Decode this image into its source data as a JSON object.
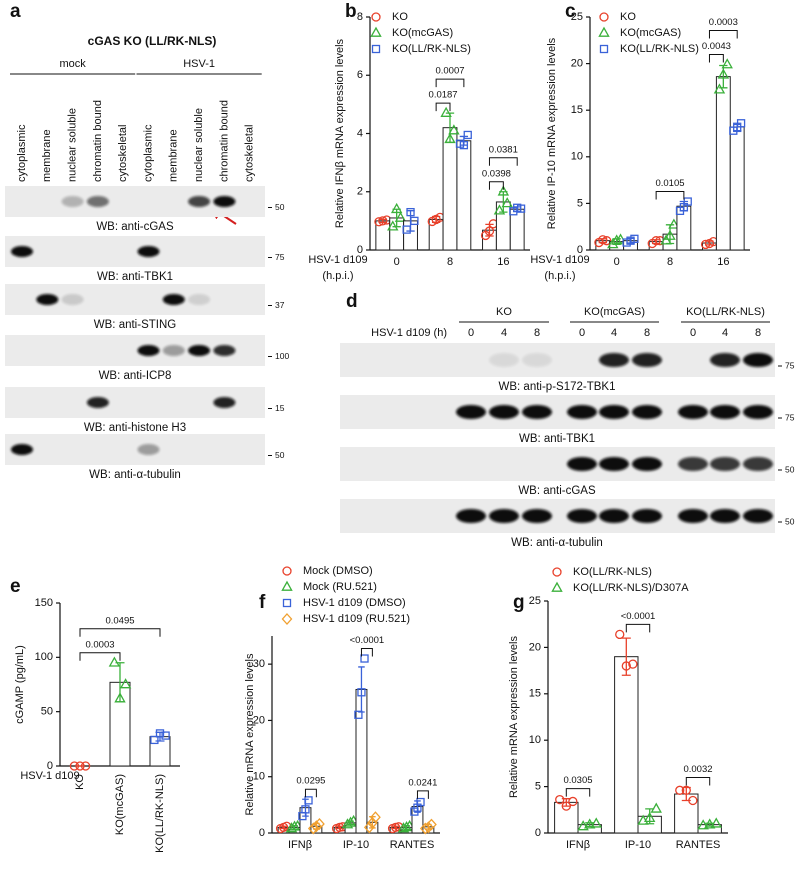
{
  "blot_panels": [
    {
      "panel_label": "a",
      "title": "cGAS KO (LL/RK-NLS)",
      "groups": [
        "mock",
        "HSV-1"
      ],
      "lanes": [
        "cytoplasmic",
        "membrane",
        "nuclear soluble",
        "chromatin bound",
        "cytoskeletal",
        "cytoplasmic",
        "membrane",
        "nuclear soluble",
        "chromatin bound",
        "cytoskeletal"
      ],
      "blots": [
        {
          "label": "WB: anti-cGAS",
          "marker": "50"
        },
        {
          "label": "WB: anti-TBK1",
          "marker": "75"
        },
        {
          "label": "WB: anti-STING",
          "marker": "37"
        },
        {
          "label": "WB: anti-ICP8",
          "marker": "100"
        },
        {
          "label": "WB: anti-histone H3",
          "marker": "15"
        },
        {
          "label": "WB: anti-α-tubulin",
          "marker": "50"
        }
      ]
    },
    {
      "panel_label": "d",
      "condition_label": "HSV-1 d109 (h)",
      "groups": [
        "KO",
        "KO(mcGAS)",
        "KO(LL/RK-NLS)"
      ],
      "lanes": [
        "0",
        "4",
        "8",
        "0",
        "4",
        "8",
        "0",
        "4",
        "8"
      ],
      "blots": [
        {
          "label": "WB: anti-p-S172-TBK1",
          "marker": "75"
        },
        {
          "label": "WB: anti-TBK1",
          "marker": "75"
        },
        {
          "label": "WB: anti-cGAS",
          "marker": "50"
        },
        {
          "label": "WB: anti-α-tubulin",
          "marker": "50"
        }
      ]
    }
  ],
  "chart_data": [
    {
      "panel_label": "b",
      "type": "bar",
      "y_label": "Relative IFNβ mRNA expression levels",
      "x_label": [
        "HSV-1 d109",
        "(h.p.i.)"
      ],
      "categories": [
        "0",
        "8",
        "16"
      ],
      "ylim": [
        0,
        8
      ],
      "yticks": [
        0,
        2,
        4,
        6,
        8
      ],
      "legend": "upper left",
      "series": [
        {
          "name": "KO",
          "color": "#e8402a",
          "marker": "circle",
          "values": [
            1.0,
            1.05,
            0.68
          ],
          "errors": [
            0.05,
            0.1,
            0.2
          ],
          "points": [
            [
              0.97,
              1.0,
              1.03
            ],
            [
              0.98,
              1.05,
              1.12
            ],
            [
              0.5,
              0.65,
              0.9
            ]
          ]
        },
        {
          "name": "KO(mcGAS)",
          "color": "#3bb03b",
          "marker": "triangle",
          "values": [
            1.1,
            4.2,
            1.65
          ],
          "errors": [
            0.3,
            0.5,
            0.35
          ],
          "points": [
            [
              0.8,
              1.4,
              1.1
            ],
            [
              4.7,
              3.8,
              4.1
            ],
            [
              1.35,
              2.0,
              1.6
            ]
          ]
        },
        {
          "name": "KO(LL/RK-NLS)",
          "color": "#3a62d8",
          "marker": "square",
          "values": [
            1.0,
            3.75,
            1.4
          ],
          "errors": [
            0.35,
            0.15,
            0.08
          ],
          "points": [
            [
              0.7,
              1.3,
              1.0
            ],
            [
              3.65,
              3.6,
              3.95
            ],
            [
              1.33,
              1.45,
              1.42
            ]
          ]
        }
      ],
      "brackets": [
        {
          "category": 1,
          "from": 0,
          "to": 1,
          "label": "0.0187"
        },
        {
          "category": 1,
          "from": 0,
          "to": 2,
          "label": "0.0007"
        },
        {
          "category": 2,
          "from": 0,
          "to": 1,
          "label": "0.0398"
        },
        {
          "category": 2,
          "from": 0,
          "to": 2,
          "label": "0.0381"
        }
      ]
    },
    {
      "panel_label": "c",
      "type": "bar",
      "y_label": "Relative IP-10 mRNA expression levels",
      "x_label": [
        "HSV-1 d109",
        "(h.p.i.)"
      ],
      "categories": [
        "0",
        "8",
        "16"
      ],
      "ylim": [
        0,
        25
      ],
      "yticks": [
        0,
        5,
        10,
        15,
        20,
        25
      ],
      "legend": "upper left",
      "series": [
        {
          "name": "KO",
          "color": "#e8402a",
          "marker": "circle",
          "values": [
            1.0,
            0.9,
            0.75
          ],
          "errors": [
            0.2,
            0.2,
            0.2
          ],
          "points": [
            [
              0.8,
              1.1,
              1.0
            ],
            [
              0.7,
              1.0,
              1.0
            ],
            [
              0.6,
              0.7,
              0.9
            ]
          ]
        },
        {
          "name": "KO(mcGAS)",
          "color": "#3bb03b",
          "marker": "triangle",
          "values": [
            0.9,
            1.7,
            18.6
          ],
          "errors": [
            0.3,
            1.0,
            1.2
          ],
          "points": [
            [
              0.6,
              1.0,
              1.1
            ],
            [
              1.0,
              1.5,
              2.7
            ],
            [
              17.2,
              18.8,
              19.9
            ]
          ]
        },
        {
          "name": "KO(LL/RK-NLS)",
          "color": "#3a62d8",
          "marker": "square",
          "values": [
            1.0,
            4.7,
            13.2
          ],
          "errors": [
            0.25,
            0.5,
            0.4
          ],
          "points": [
            [
              0.8,
              1.0,
              1.2
            ],
            [
              4.2,
              4.6,
              5.2
            ],
            [
              12.8,
              13.1,
              13.6
            ]
          ]
        }
      ],
      "brackets": [
        {
          "category": 1,
          "from": 0,
          "to": 2,
          "label": "0.0105"
        },
        {
          "category": 2,
          "from": 0,
          "to": 1,
          "label": "0.0043"
        },
        {
          "category": 2,
          "from": 0,
          "to": 2,
          "label": "0.0003"
        }
      ]
    },
    {
      "panel_label": "e",
      "type": "bar",
      "y_label": "cGAMP (pg/mL)",
      "x_label": [
        "HSV-1 d109"
      ],
      "categories": [
        "KO",
        "KO(mcGAS)",
        "KO(LL/RK-NLS)"
      ],
      "rotate_categories": true,
      "ylim": [
        0,
        150
      ],
      "yticks": [
        0,
        50,
        100,
        150
      ],
      "values": [
        0,
        77,
        27
      ],
      "errors": [
        0,
        18,
        4
      ],
      "points": [
        [
          0,
          0,
          0
        ],
        [
          95,
          62,
          75
        ],
        [
          24,
          30,
          28
        ]
      ],
      "colors": [
        "#e8402a",
        "#3bb03b",
        "#3a62d8"
      ],
      "markers": [
        "circle",
        "triangle",
        "square"
      ],
      "brackets": [
        {
          "from": 0,
          "to": 1,
          "label": "0.0003"
        },
        {
          "from": 0,
          "to": 2,
          "label": "0.0495"
        }
      ]
    },
    {
      "panel_label": "f",
      "type": "bar",
      "y_label": "Relative mRNA expression levels",
      "categories": [
        "IFNβ",
        "IP-10",
        "RANTES"
      ],
      "ylim": [
        0,
        35
      ],
      "yticks": [
        0,
        10,
        20,
        30
      ],
      "legend": "upper left",
      "series": [
        {
          "name": "Mock (DMSO)",
          "color": "#e8402a",
          "marker": "circle",
          "values": [
            1.0,
            1.0,
            1.0
          ],
          "errors": [
            0.2,
            0.2,
            0.2
          ],
          "points": [
            [
              0.8,
              1.0,
              1.2
            ],
            [
              0.8,
              1.0,
              1.1
            ],
            [
              0.8,
              1.0,
              1.1
            ]
          ]
        },
        {
          "name": "Mock (RU.521)",
          "color": "#3bb03b",
          "marker": "triangle",
          "values": [
            1.0,
            1.8,
            1.0
          ],
          "errors": [
            0.3,
            0.3,
            0.3
          ],
          "points": [
            [
              0.8,
              1.1,
              1.2
            ],
            [
              1.5,
              1.8,
              2.1
            ],
            [
              0.8,
              1.0,
              1.2
            ]
          ]
        },
        {
          "name": "HSV-1 d109 (DMSO)",
          "color": "#3a62d8",
          "marker": "square",
          "values": [
            4.5,
            25.5,
            4.7
          ],
          "errors": [
            1.5,
            4.0,
            1.0
          ],
          "points": [
            [
              3.0,
              4.2,
              5.8
            ],
            [
              21,
              25,
              31
            ],
            [
              3.8,
              4.5,
              5.5
            ]
          ]
        },
        {
          "name": "HSV-1 d109 (RU.521)",
          "color": "#f0a030",
          "marker": "diamond",
          "values": [
            1.2,
            1.9,
            1.1
          ],
          "errors": [
            0.5,
            1.0,
            0.4
          ],
          "points": [
            [
              0.8,
              1.2,
              1.6
            ],
            [
              1.0,
              1.8,
              2.8
            ],
            [
              0.8,
              1.0,
              1.5
            ]
          ]
        }
      ],
      "brackets": [
        {
          "category": 0,
          "from": 2,
          "to": 3,
          "label": "0.0295"
        },
        {
          "category": 1,
          "from": 2,
          "to": 3,
          "label": "<0.0001"
        },
        {
          "category": 2,
          "from": 2,
          "to": 3,
          "label": "0.0241"
        }
      ]
    },
    {
      "panel_label": "g",
      "type": "bar",
      "y_label": "Relative mRNA expression levels",
      "categories": [
        "IFNβ",
        "IP-10",
        "RANTES"
      ],
      "ylim": [
        0,
        25
      ],
      "yticks": [
        0,
        5,
        10,
        15,
        20,
        25
      ],
      "legend": "upper left",
      "series": [
        {
          "name": "KO(LL/RK-NLS)",
          "color": "#e8402a",
          "marker": "circle",
          "values": [
            3.3,
            19.0,
            4.2
          ],
          "errors": [
            0.4,
            2.0,
            0.7
          ],
          "points": [
            [
              3.6,
              2.9,
              3.4
            ],
            [
              21.4,
              18.0,
              18.2
            ],
            [
              4.6,
              4.6,
              3.5
            ]
          ]
        },
        {
          "name": "KO(LL/RK-NLS)/D307A",
          "color": "#3bb03b",
          "marker": "triangle",
          "values": [
            0.9,
            1.8,
            0.9
          ],
          "errors": [
            0.2,
            0.8,
            0.15
          ],
          "points": [
            [
              0.7,
              0.9,
              1.0
            ],
            [
              1.3,
              1.6,
              2.6
            ],
            [
              0.8,
              0.9,
              1.0
            ]
          ]
        }
      ],
      "brackets": [
        {
          "category": 0,
          "from": 0,
          "to": 1,
          "label": "0.0305"
        },
        {
          "category": 1,
          "from": 0,
          "to": 1,
          "label": "<0.0001"
        },
        {
          "category": 2,
          "from": 0,
          "to": 1,
          "label": "0.0032"
        }
      ]
    }
  ]
}
